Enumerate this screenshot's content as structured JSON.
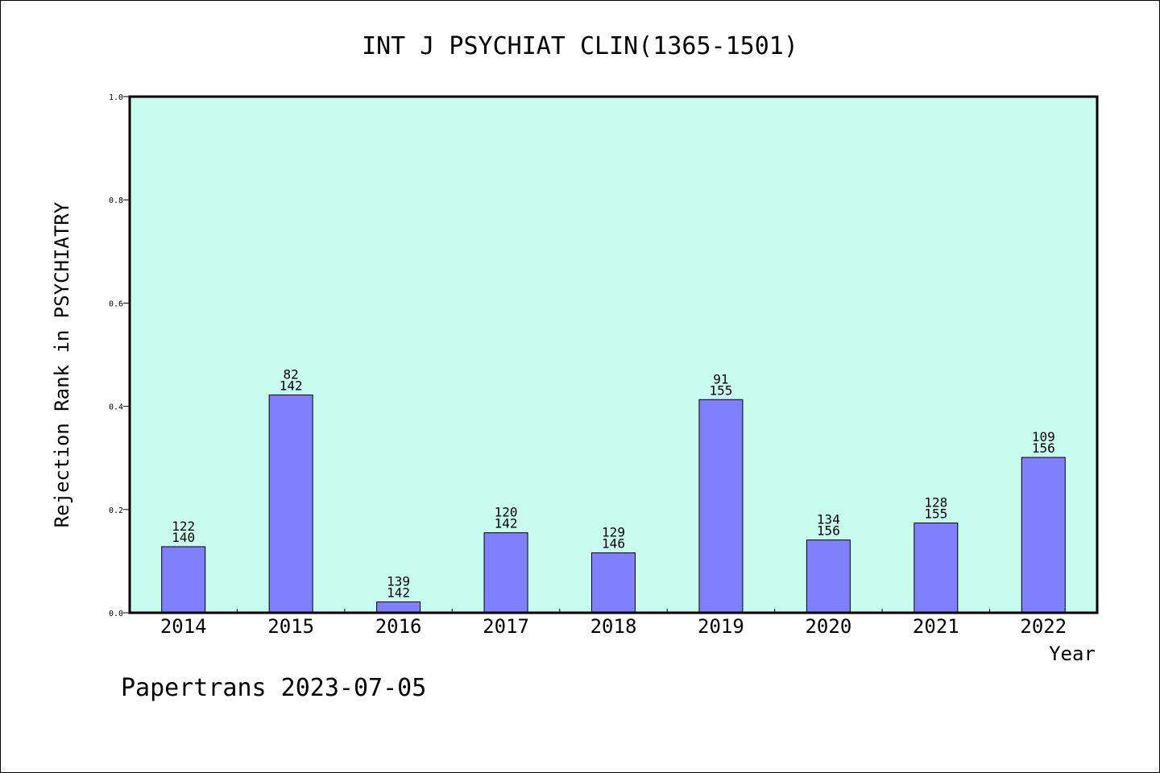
{
  "chart_data": {
    "type": "bar",
    "title": "INT J PSYCHIAT CLIN(1365-1501)",
    "xlabel": "Year",
    "ylabel": "Rejection Rank in PSYCHIATRY",
    "ylim": [
      0,
      1.0
    ],
    "yticks": [
      "0.0",
      "0.2",
      "0.4",
      "0.6",
      "0.8",
      "1.0"
    ],
    "grid": false,
    "categories": [
      "2014",
      "2015",
      "2016",
      "2017",
      "2018",
      "2019",
      "2020",
      "2021",
      "2022"
    ],
    "values": [
      0.128,
      0.422,
      0.021,
      0.155,
      0.116,
      0.413,
      0.141,
      0.174,
      0.301
    ],
    "labels_top": [
      "122",
      "82",
      "139",
      "120",
      "129",
      "91",
      "134",
      "128",
      "109"
    ],
    "labels_bottom": [
      "140",
      "142",
      "142",
      "142",
      "146",
      "155",
      "156",
      "155",
      "156"
    ],
    "colors": {
      "plot_background": "#c8fcee",
      "bar_fill": "#8080ff",
      "bar_stroke": "#000000"
    }
  },
  "footer": {
    "text": "Papertrans 2023-07-05"
  }
}
